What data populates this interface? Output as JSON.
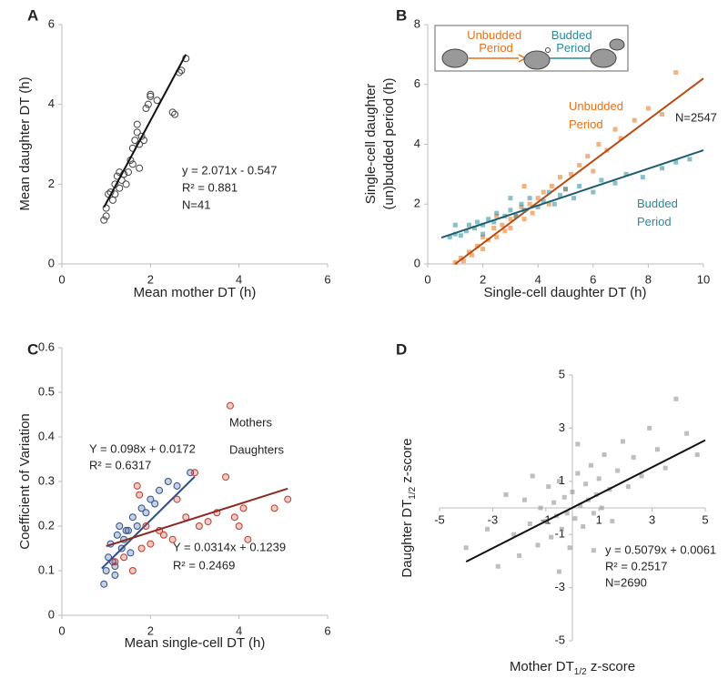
{
  "chart_data": [
    {
      "type": "scatter",
      "panel": "A",
      "xlabel": "Mean mother DT (h)",
      "ylabel": "Mean daughter DT  (h)",
      "xlim": [
        0,
        6
      ],
      "ylim": [
        0,
        6
      ],
      "xticks": [
        0,
        2,
        4,
        6
      ],
      "yticks": [
        0,
        2,
        4,
        6
      ],
      "marker": "open",
      "series": [
        {
          "color": "#444444",
          "x": [
            0.95,
            1.0,
            1.0,
            1.05,
            1.1,
            1.15,
            1.2,
            1.2,
            1.25,
            1.3,
            1.3,
            1.35,
            1.4,
            1.45,
            1.5,
            1.55,
            1.6,
            1.6,
            1.65,
            1.7,
            1.7,
            1.75,
            1.75,
            1.8,
            1.85,
            1.9,
            1.95,
            2.0,
            2.0,
            2.15,
            2.5,
            2.55,
            2.65,
            2.7,
            2.8
          ],
          "y": [
            1.1,
            1.2,
            1.4,
            1.75,
            1.8,
            1.6,
            1.75,
            2.0,
            2.2,
            2.3,
            1.9,
            2.1,
            2.25,
            2.0,
            2.3,
            2.6,
            2.5,
            2.9,
            3.1,
            3.3,
            3.5,
            2.4,
            3.0,
            3.2,
            3.1,
            3.9,
            4.0,
            4.25,
            4.2,
            4.1,
            3.8,
            3.75,
            4.8,
            4.85,
            5.15
          ],
          "fit": {
            "x": [
              0.95,
              2.8
            ],
            "y": [
              1.42,
              5.25
            ],
            "color": "#111111"
          }
        }
      ],
      "annotations": [
        {
          "text": "y = 2.071x - 0.547",
          "color": "#222222"
        },
        {
          "text": "R² = 0.881",
          "color": "#222222"
        },
        {
          "text": "N=41",
          "color": "#222222"
        }
      ]
    },
    {
      "type": "scatter",
      "panel": "B",
      "xlabel": "Single-cell daughter DT (h)",
      "ylabel": [
        "Single-cell daughter",
        "(un)budded period (h)"
      ],
      "xlim": [
        0,
        10
      ],
      "ylim": [
        0,
        8
      ],
      "xticks": [
        0,
        2,
        4,
        6,
        8,
        10
      ],
      "yticks": [
        0,
        2,
        4,
        6,
        8
      ],
      "marker": "square",
      "series": [
        {
          "name": "Unbudded Period",
          "color": "#e8711a",
          "x": [
            1,
            1.2,
            1.3,
            1.5,
            1.6,
            1.8,
            2,
            2,
            2.2,
            2.4,
            2.5,
            2.7,
            2.8,
            3,
            3,
            3.2,
            3.4,
            3.5,
            3.7,
            3.8,
            4,
            4.2,
            4.4,
            4.5,
            4.8,
            5,
            5.2,
            5.5,
            5.8,
            6,
            6.2,
            6.5,
            6.8,
            7,
            7.5,
            8,
            8.5,
            9,
            3.5,
            2.5
          ],
          "y": [
            0.05,
            0.2,
            0.1,
            0.4,
            0.3,
            0.6,
            0.5,
            0.9,
            0.8,
            1.2,
            0.9,
            1.3,
            1.1,
            1.5,
            1.2,
            1.6,
            1.9,
            1.5,
            2.0,
            1.7,
            2.2,
            2.4,
            2.0,
            2.6,
            2.9,
            2.5,
            3.0,
            3.3,
            3.6,
            3.1,
            4.0,
            3.8,
            4.5,
            4.2,
            4.8,
            5.2,
            5.0,
            6.4,
            2.6,
            1.6
          ],
          "fit": {
            "x": [
              1,
              10
            ],
            "y": [
              0,
              6.2
            ],
            "color": "#b84a10"
          }
        },
        {
          "name": "Budded Period",
          "color": "#2a8a9c",
          "x": [
            0.8,
            1,
            1.2,
            1.4,
            1.5,
            1.7,
            1.8,
            2,
            2.2,
            2.4,
            2.5,
            2.8,
            3,
            3.2,
            3.4,
            3.5,
            3.7,
            4,
            4.2,
            4.4,
            4.6,
            4.8,
            5,
            5.3,
            5.5,
            6,
            6.3,
            6.8,
            7.2,
            7.8,
            8.5,
            9,
            9.5,
            1,
            2,
            3
          ],
          "y": [
            0.9,
            1.0,
            0.95,
            1.1,
            1.3,
            1.2,
            1.4,
            1.3,
            1.5,
            1.4,
            1.7,
            1.6,
            1.8,
            1.6,
            2.0,
            1.8,
            2.2,
            1.9,
            2.1,
            2.4,
            2.0,
            2.3,
            2.5,
            2.2,
            2.6,
            2.4,
            2.8,
            2.7,
            3.0,
            2.9,
            3.2,
            3.4,
            3.5,
            1.3,
            1.0,
            2.2
          ],
          "fit": {
            "x": [
              0.5,
              10
            ],
            "y": [
              0.88,
              3.8
            ],
            "color": "#1d5f70"
          }
        }
      ],
      "annotations": [
        {
          "text": "N=2547",
          "color": "#222222"
        }
      ]
    },
    {
      "type": "scatter",
      "panel": "C",
      "xlabel": "Mean single-cell DT (h)",
      "ylabel": "Coefficient of Variation",
      "xlim": [
        0,
        6
      ],
      "ylim": [
        0,
        0.6
      ],
      "xticks": [
        0,
        2,
        4,
        6
      ],
      "yticks": [
        0,
        0.1,
        0.2,
        0.3,
        0.4,
        0.5,
        0.6
      ],
      "marker": "open",
      "series": [
        {
          "name": "Mothers",
          "color": "#2d4f8f",
          "x": [
            0.95,
            1.0,
            1.05,
            1.1,
            1.15,
            1.2,
            1.25,
            1.3,
            1.35,
            1.4,
            1.5,
            1.55,
            1.6,
            1.7,
            1.8,
            1.9,
            2.0,
            2.1,
            2.2,
            2.4,
            2.6,
            2.9,
            1.2,
            1.45
          ],
          "y": [
            0.07,
            0.1,
            0.13,
            0.16,
            0.12,
            0.09,
            0.18,
            0.2,
            0.15,
            0.17,
            0.19,
            0.14,
            0.22,
            0.2,
            0.24,
            0.23,
            0.26,
            0.25,
            0.28,
            0.3,
            0.29,
            0.32,
            0.11,
            0.19
          ],
          "fit": {
            "x": [
              0.9,
              3.0
            ],
            "y": [
              0.105,
              0.311
            ],
            "color": "#2d4f8f"
          }
        },
        {
          "name": "Daughters",
          "color": "#c0392b",
          "x": [
            1.2,
            1.4,
            1.6,
            1.7,
            1.75,
            1.8,
            1.9,
            2.0,
            2.2,
            2.3,
            2.5,
            2.6,
            2.8,
            3.0,
            3.1,
            3.3,
            3.5,
            3.7,
            3.8,
            3.9,
            4.0,
            4.1,
            4.2,
            4.8,
            5.1
          ],
          "y": [
            0.12,
            0.13,
            0.1,
            0.29,
            0.27,
            0.15,
            0.2,
            0.16,
            0.19,
            0.18,
            0.17,
            0.26,
            0.22,
            0.32,
            0.2,
            0.21,
            0.23,
            0.31,
            0.47,
            0.22,
            0.2,
            0.24,
            0.17,
            0.24,
            0.26
          ],
          "fit": {
            "x": [
              1.0,
              5.1
            ],
            "y": [
              0.155,
              0.284
            ],
            "color": "#8b2a22"
          }
        }
      ],
      "annotations": [
        {
          "text": "Y = 0.098x + 0.0172",
          "color": "#2d4f8f"
        },
        {
          "text": "R² = 0.6317",
          "color": "#2d4f8f"
        },
        {
          "text": "Y = 0.0314x + 0.1239",
          "color": "#8b2a22"
        },
        {
          "text": "R² = 0.2469",
          "color": "#8b2a22"
        }
      ]
    },
    {
      "type": "crossscatter",
      "panel": "D",
      "xlabel": {
        "text": "Mother DT",
        "sub": "1/2",
        "rest": " z-score"
      },
      "ylabel": {
        "text": "Daughter DT",
        "sub": "1/2",
        "rest": " z-score"
      },
      "xlim": [
        -5,
        5
      ],
      "ylim": [
        -5,
        5
      ],
      "xticks": [
        -5,
        -3,
        -1,
        1,
        3,
        5
      ],
      "yticks": [
        -5,
        -3,
        -1,
        1,
        3,
        5
      ],
      "marker": "square",
      "series": [
        {
          "color": "#888888",
          "x": [
            -4,
            -3.2,
            -2.8,
            -2.5,
            -2.2,
            -2,
            -1.8,
            -1.6,
            -1.5,
            -1.3,
            -1.2,
            -1,
            -0.9,
            -0.8,
            -0.7,
            -0.6,
            -0.5,
            -0.4,
            -0.3,
            -0.2,
            -0.1,
            0,
            0.1,
            0.2,
            0.3,
            0.4,
            0.5,
            0.6,
            0.7,
            0.8,
            0.9,
            1,
            1.1,
            1.2,
            1.4,
            1.5,
            1.7,
            1.9,
            2.1,
            2.3,
            2.6,
            2.9,
            3.2,
            3.5,
            3.9,
            4.3,
            4.7,
            -0.5,
            0.2,
            0.8
          ],
          "y": [
            -1.5,
            -0.8,
            -2.2,
            0.5,
            -1.0,
            -1.8,
            0.3,
            -0.6,
            1.2,
            -1.4,
            0.0,
            -0.5,
            0.8,
            -1.1,
            0.2,
            -0.3,
            1.0,
            -0.8,
            0.4,
            -0.2,
            -1.5,
            0.6,
            -0.4,
            1.3,
            0.1,
            -0.7,
            0.9,
            0.3,
            1.6,
            -0.2,
            0.5,
            1.1,
            0.0,
            2.0,
            0.7,
            -0.5,
            1.4,
            2.5,
            0.8,
            1.9,
            1.2,
            3.0,
            2.2,
            1.5,
            4.1,
            2.8,
            2.0,
            -2.4,
            2.4,
            -1.6
          ],
          "fit": {
            "x": [
              -4,
              5
            ],
            "y": [
              -2.026,
              2.546
            ],
            "color": "#111111"
          }
        }
      ],
      "annotations": [
        {
          "text": "y = 0.5079x + 0.0061",
          "color": "#222222"
        },
        {
          "text": "R² = 0.2517",
          "color": "#222222"
        },
        {
          "text": "N=2690",
          "color": "#222222"
        }
      ]
    }
  ]
}
